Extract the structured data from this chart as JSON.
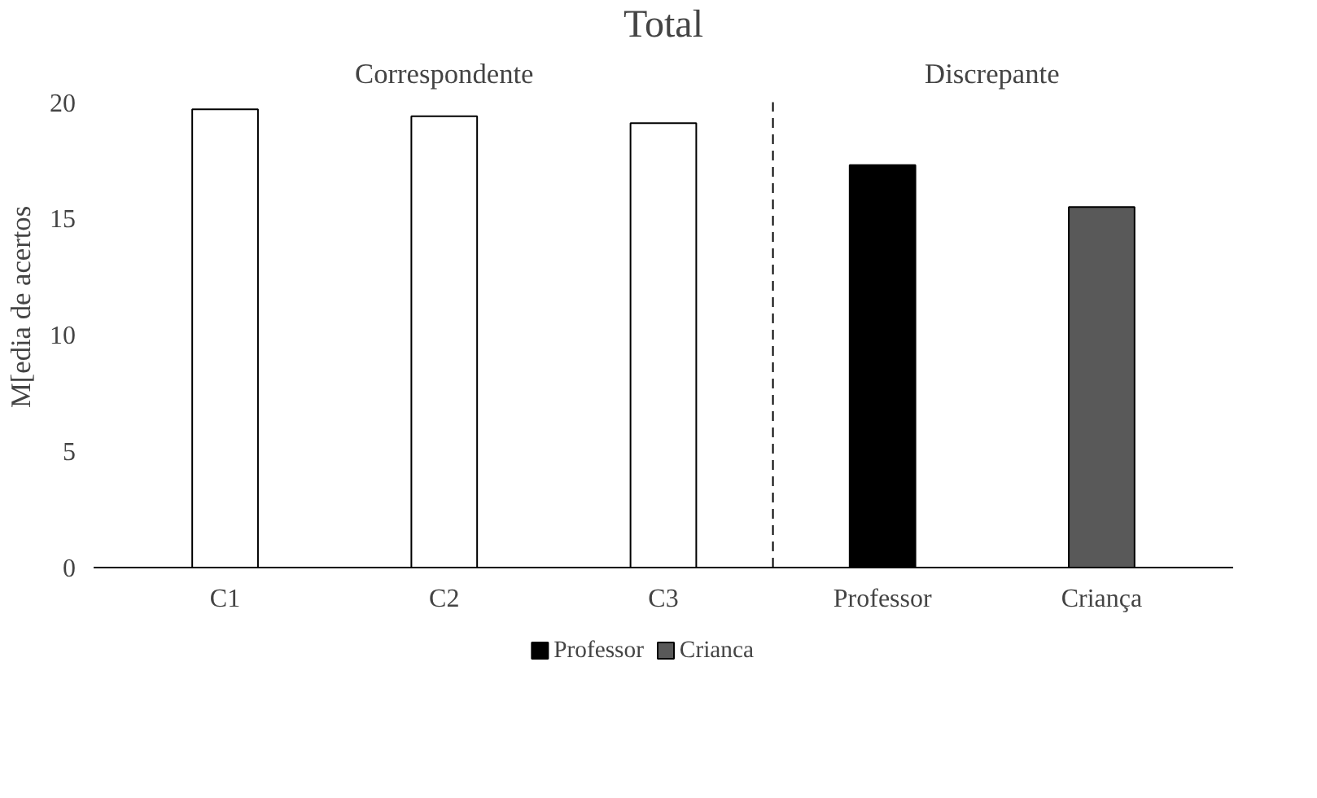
{
  "chart_data": {
    "type": "bar",
    "title": "Total",
    "ylabel": "M[edia de acertos",
    "categories": [
      "C1",
      "C2",
      "C3",
      "Professor",
      "Criança"
    ],
    "series": [
      {
        "color": "#ffffff",
        "values": [
          19.7,
          19.4,
          19.1,
          null,
          null
        ]
      },
      {
        "name": "Professor",
        "color": "#000000",
        "values": [
          null,
          null,
          null,
          17.3,
          null
        ]
      },
      {
        "name": "Crianca",
        "color": "#595959",
        "values": [
          null,
          null,
          null,
          null,
          15.5
        ]
      }
    ],
    "ylim": [
      0,
      20
    ],
    "yticks": [
      0,
      5,
      10,
      15,
      20
    ],
    "grid": false,
    "legend": "bottom",
    "annotations": [
      "Correspondente",
      "Discrepante"
    ]
  }
}
